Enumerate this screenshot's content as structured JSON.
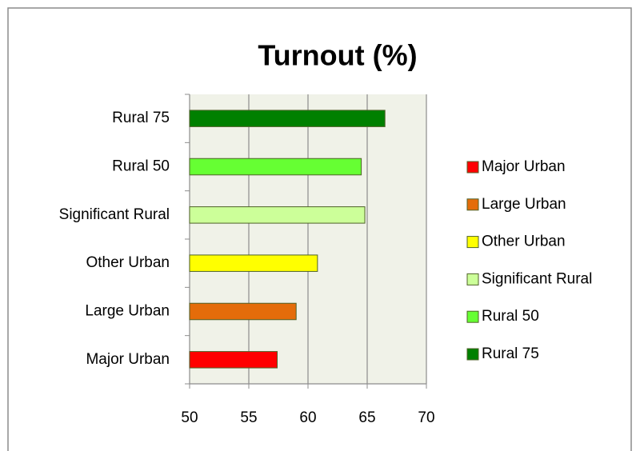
{
  "chart_data": {
    "type": "bar",
    "orientation": "horizontal",
    "title": "Turnout  (%)",
    "categories": [
      "Major Urban",
      "Large Urban",
      "Other Urban",
      "Significant Rural",
      "Rural 50",
      "Rural 75"
    ],
    "values": [
      57.4,
      59.0,
      60.8,
      64.8,
      64.5,
      66.5
    ],
    "colors": [
      "#ff0000",
      "#e46c0a",
      "#ffff00",
      "#ccff99",
      "#66ff33",
      "#008000"
    ],
    "xlim": [
      50,
      70
    ],
    "xticks": [
      50,
      55,
      60,
      65,
      70
    ],
    "grid": true,
    "legend": "right"
  }
}
